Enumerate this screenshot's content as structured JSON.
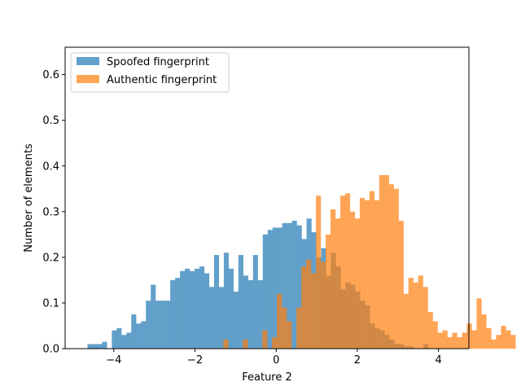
{
  "chart_data": {
    "type": "histogram",
    "title": "",
    "xlabel": "Feature 2",
    "ylabel": "Number of elements",
    "xlim": [
      -5.2,
      4.75
    ],
    "ylim": [
      0,
      0.66
    ],
    "xticks": [
      -4,
      -2,
      0,
      2,
      4
    ],
    "xtick_labels": [
      "−4",
      "−2",
      "0",
      "2",
      "4"
    ],
    "yticks": [
      0.0,
      0.1,
      0.2,
      0.3,
      0.4,
      0.5,
      0.6
    ],
    "ytick_labels": [
      "0.0",
      "0.1",
      "0.2",
      "0.3",
      "0.4",
      "0.5",
      "0.6"
    ],
    "grid": false,
    "legend_position": "top-left",
    "series": [
      {
        "name": "Spoofed fingerprint",
        "color": "#1f77b4",
        "opacity": 0.7,
        "start": -4.65,
        "bin_width": 0.12,
        "values": [
          0.01,
          0.01,
          0.01,
          0.015,
          0.0,
          0.04,
          0.045,
          0.03,
          0.035,
          0.075,
          0.055,
          0.06,
          0.105,
          0.14,
          0.105,
          0.105,
          0.105,
          0.15,
          0.155,
          0.17,
          0.175,
          0.17,
          0.175,
          0.18,
          0.165,
          0.135,
          0.205,
          0.135,
          0.21,
          0.175,
          0.125,
          0.205,
          0.16,
          0.15,
          0.205,
          0.15,
          0.25,
          0.26,
          0.265,
          0.265,
          0.275,
          0.275,
          0.28,
          0.27,
          0.24,
          0.285,
          0.255,
          0.2,
          0.22,
          0.16,
          0.21,
          0.18,
          0.13,
          0.145,
          0.14,
          0.125,
          0.105,
          0.095,
          0.055,
          0.045,
          0.04,
          0.03,
          0.02,
          0.01,
          0.01,
          0.005,
          0.005,
          0.0,
          0.0,
          0.01
        ]
      },
      {
        "name": "Authentic fingerprint",
        "color": "#ff7f0e",
        "opacity": 0.7,
        "start": -1.3,
        "bin_width": 0.12,
        "values": [
          0.02,
          0.0,
          0.0,
          0.0,
          0.02,
          0.0,
          0.0,
          0.0,
          0.04,
          0.0,
          0.025,
          0.12,
          0.09,
          0.06,
          0.0,
          0.09,
          0.18,
          0.195,
          0.165,
          0.335,
          0.19,
          0.25,
          0.305,
          0.285,
          0.335,
          0.34,
          0.3,
          0.285,
          0.33,
          0.325,
          0.345,
          0.325,
          0.38,
          0.38,
          0.36,
          0.35,
          0.28,
          0.12,
          0.155,
          0.145,
          0.16,
          0.135,
          0.08,
          0.06,
          0.035,
          0.04,
          0.025,
          0.035,
          0.025,
          0.035,
          0.055,
          0.04,
          0.11,
          0.075,
          0.045,
          0.02,
          0.03,
          0.05,
          0.04,
          0.03,
          0.0,
          0.0,
          0.0,
          0.0,
          0.0,
          0.0,
          0.0,
          0.015,
          0.03
        ]
      }
    ]
  }
}
